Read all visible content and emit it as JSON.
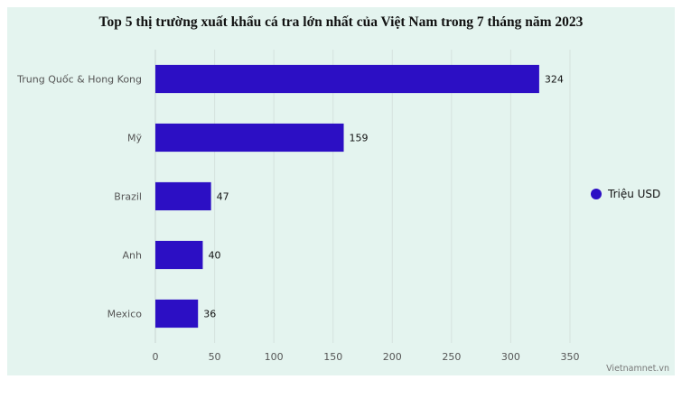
{
  "chart_data": {
    "type": "bar",
    "orientation": "horizontal",
    "title": "Top 5 thị trường xuất khẩu cá tra lớn nhất của Việt Nam trong 7 tháng năm 2023",
    "categories": [
      "Trung Quốc & Hong Kong",
      "Mỹ",
      "Brazil",
      "Anh",
      "Mexico"
    ],
    "series": [
      {
        "name": "Triệu USD",
        "values": [
          324,
          159,
          47,
          40,
          36
        ]
      }
    ],
    "xlim": [
      0,
      350
    ],
    "xticks": [
      0,
      50,
      100,
      150,
      200,
      250,
      300,
      350
    ],
    "grid": true,
    "legend": "right",
    "colors": {
      "bar": "#2c0fc4",
      "background": "#e4f4ef"
    }
  },
  "credit": "Vietnamnet.vn"
}
